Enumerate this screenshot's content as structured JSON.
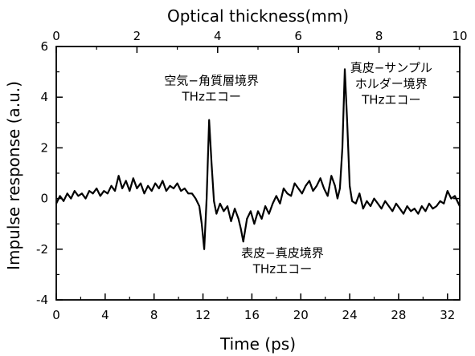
{
  "chart_data": {
    "type": "line",
    "xlabel": "Time (ps)",
    "ylabel": "Impulse response (a.u.)",
    "x2label": "Optical thickness(mm)",
    "xlim": [
      0,
      33
    ],
    "ylim": [
      -4,
      6
    ],
    "x2lim": [
      0,
      10
    ],
    "xticks": [
      0,
      4,
      8,
      12,
      16,
      20,
      24,
      28,
      32
    ],
    "yticks": [
      -4,
      -2,
      0,
      2,
      4,
      6
    ],
    "x2ticks": [
      0,
      2,
      4,
      6,
      8,
      10
    ],
    "grid": false,
    "legend": "none",
    "line_color": "#000000",
    "annotations": [
      {
        "lines": [
          "空気−角質層境界",
          "THzエコー"
        ],
        "x": 12.7,
        "y": 4.5
      },
      {
        "lines": [
          "真皮−サンプル",
          "ホルダー境界",
          "THzエコー"
        ],
        "x": 27.4,
        "y": 5.0
      },
      {
        "lines": [
          "表皮−真皮境界",
          "THzエコー"
        ],
        "x": 18.5,
        "y": -2.3
      }
    ],
    "series": [
      {
        "x": [
          0.0,
          0.3,
          0.6,
          0.9,
          1.2,
          1.5,
          1.8,
          2.1,
          2.4,
          2.7,
          3.0,
          3.3,
          3.6,
          3.9,
          4.2,
          4.5,
          4.8,
          5.1,
          5.4,
          5.7,
          6.0,
          6.3,
          6.6,
          6.9,
          7.2,
          7.5,
          7.8,
          8.1,
          8.4,
          8.7,
          9.0,
          9.3,
          9.6,
          9.9,
          10.2,
          10.5,
          10.8,
          11.1,
          11.4,
          11.7,
          11.9,
          12.1,
          12.3,
          12.5,
          12.7,
          12.9,
          13.1,
          13.4,
          13.7,
          14.0,
          14.3,
          14.6,
          14.9,
          15.1,
          15.3,
          15.6,
          15.9,
          16.2,
          16.5,
          16.8,
          17.1,
          17.4,
          17.7,
          18.0,
          18.3,
          18.6,
          18.9,
          19.2,
          19.5,
          19.8,
          20.1,
          20.4,
          20.7,
          21.0,
          21.3,
          21.6,
          21.9,
          22.2,
          22.5,
          22.8,
          23.0,
          23.2,
          23.4,
          23.6,
          23.8,
          24.0,
          24.2,
          24.5,
          24.8,
          25.1,
          25.4,
          25.7,
          26.0,
          26.3,
          26.6,
          26.9,
          27.2,
          27.5,
          27.8,
          28.1,
          28.4,
          28.7,
          29.0,
          29.3,
          29.6,
          29.9,
          30.2,
          30.5,
          30.8,
          31.1,
          31.4,
          31.7,
          32.0,
          32.3,
          32.6,
          33.0
        ],
        "y": [
          -0.2,
          0.1,
          -0.1,
          0.2,
          0.0,
          0.3,
          0.1,
          0.2,
          0.0,
          0.3,
          0.2,
          0.4,
          0.1,
          0.3,
          0.2,
          0.5,
          0.3,
          0.9,
          0.4,
          0.7,
          0.3,
          0.8,
          0.4,
          0.6,
          0.2,
          0.5,
          0.3,
          0.6,
          0.4,
          0.7,
          0.3,
          0.5,
          0.4,
          0.6,
          0.3,
          0.4,
          0.2,
          0.2,
          0.0,
          -0.3,
          -1.0,
          -2.0,
          0.0,
          3.1,
          1.4,
          -0.1,
          -0.6,
          -0.2,
          -0.5,
          -0.3,
          -0.9,
          -0.4,
          -0.8,
          -1.2,
          -1.7,
          -0.8,
          -0.5,
          -1.0,
          -0.5,
          -0.8,
          -0.3,
          -0.6,
          -0.2,
          0.1,
          -0.2,
          0.4,
          0.2,
          0.1,
          0.6,
          0.4,
          0.2,
          0.5,
          0.7,
          0.3,
          0.5,
          0.8,
          0.4,
          0.1,
          0.9,
          0.5,
          0.0,
          0.4,
          2.0,
          5.1,
          3.0,
          0.5,
          -0.1,
          -0.2,
          0.2,
          -0.4,
          -0.1,
          -0.3,
          0.0,
          -0.2,
          -0.4,
          -0.1,
          -0.3,
          -0.5,
          -0.2,
          -0.4,
          -0.6,
          -0.3,
          -0.5,
          -0.4,
          -0.6,
          -0.3,
          -0.5,
          -0.2,
          -0.4,
          -0.3,
          -0.1,
          -0.2,
          0.3,
          0.0,
          0.1,
          -0.3
        ]
      }
    ]
  }
}
